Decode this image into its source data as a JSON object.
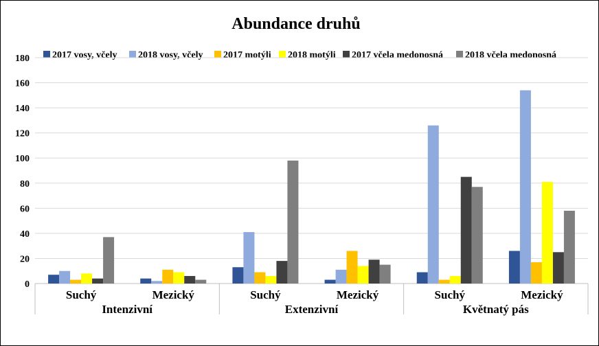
{
  "chart_data": {
    "type": "bar",
    "title": "Abundance druhů",
    "xlabel": "",
    "ylabel": "",
    "ylim": [
      0,
      180
    ],
    "ytick_step": 20,
    "yticks": [
      "0",
      "20",
      "40",
      "60",
      "80",
      "100",
      "120",
      "140",
      "160",
      "180"
    ],
    "grid": true,
    "legend_position": "top",
    "groups": [
      {
        "label": "Intenzivní",
        "categories": [
          "Suchý",
          "Mezický"
        ]
      },
      {
        "label": "Extenzivní",
        "categories": [
          "Suchý",
          "Mezický"
        ]
      },
      {
        "label": "Květnatý pás",
        "categories": [
          "Suchý",
          "Mezický"
        ]
      }
    ],
    "categories": [
      "Suchý",
      "Mezický",
      "Suchý",
      "Mezický",
      "Suchý",
      "Mezický"
    ],
    "series": [
      {
        "name": "2017 vosy, včely",
        "color": "#2f5597",
        "values": [
          7,
          4,
          13,
          3,
          9,
          26
        ]
      },
      {
        "name": "2018 vosy, včely",
        "color": "#8faadc",
        "values": [
          10,
          2,
          41,
          11,
          126,
          154
        ]
      },
      {
        "name": "2017 motýli",
        "color": "#ffc000",
        "values": [
          3,
          11,
          9,
          26,
          3,
          17
        ]
      },
      {
        "name": "2018 motýli",
        "color": "#ffff00",
        "values": [
          8,
          9,
          6,
          14,
          6,
          81
        ]
      },
      {
        "name": "2017 včela medonosná",
        "color": "#404040",
        "values": [
          4,
          6,
          18,
          19,
          85,
          25
        ]
      },
      {
        "name": "2018 včela medonosná",
        "color": "#7f7f7f",
        "values": [
          37,
          3,
          98,
          15,
          77,
          58
        ]
      }
    ]
  }
}
